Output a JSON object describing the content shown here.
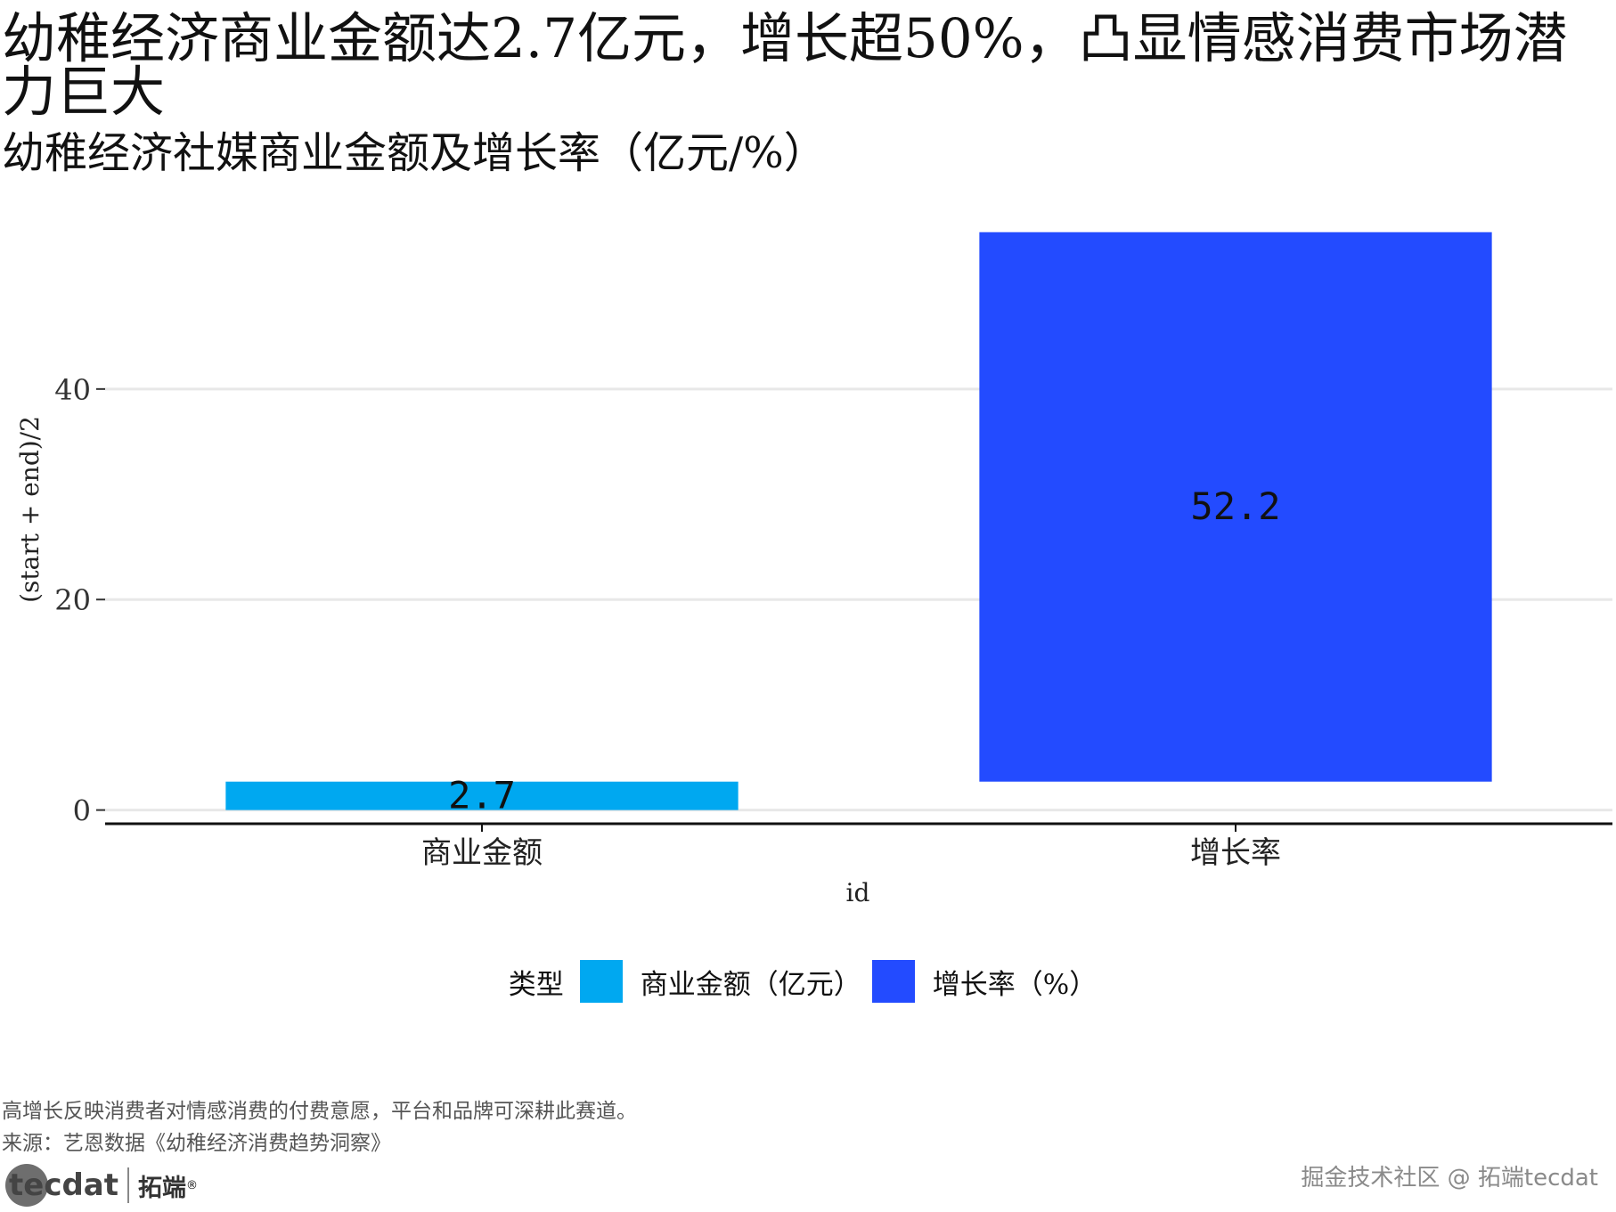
{
  "header": {
    "title": "幼稚经济商业金额达2.7亿元，增长超50%，凸显情感消费市场潜力巨大",
    "subtitle": "幼稚经济社媒商业金额及增长率（亿元/%）"
  },
  "chart_data": {
    "type": "bar",
    "subtype": "waterfall",
    "categories": [
      "商业金额",
      "增长率"
    ],
    "bars": [
      {
        "category": "商业金额",
        "start": 0,
        "end": 2.7,
        "label": "2.7",
        "type": "商业金额（亿元）",
        "color": "#00A8F0"
      },
      {
        "category": "增长率",
        "start": 2.7,
        "end": 54.9,
        "label": "52.2",
        "type": "增长率（%）",
        "color": "#234BFF"
      }
    ],
    "xlabel": "id",
    "ylabel": "(start + end)/2",
    "ylim": [
      -1.3,
      57.5
    ],
    "yticks": [
      0,
      20,
      40
    ],
    "grid": true,
    "legend": {
      "title": "类型",
      "placement": "bottom",
      "items": [
        {
          "label": "商业金额（亿元）",
          "color": "#00A8F0"
        },
        {
          "label": "增长率（%）",
          "color": "#234BFF"
        }
      ]
    }
  },
  "footer": {
    "note": "高增长反映消费者对情感消费的付费意愿，平台和品牌可深耕此赛道。",
    "source": "来源：艺恩数据《幼稚经济消费趋势洞察》",
    "brand_logo_text": "tecdat",
    "brand_cn": "拓端",
    "brand_reg": "®",
    "watermark": "掘金技术社区 @ 拓端tecdat"
  }
}
